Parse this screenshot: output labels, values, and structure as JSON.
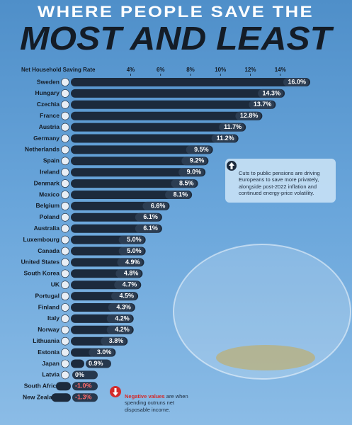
{
  "chart_data": {
    "type": "bar",
    "orientation": "horizontal",
    "title": "WHERE PEOPLE SAVE THE",
    "subtitle": "MOST AND LEAST",
    "x_label": "Net Household Saving Rate",
    "categories": [
      "Sweden",
      "Hungary",
      "Czechia",
      "France",
      "Austria",
      "Germany",
      "Netherlands",
      "Spain",
      "Ireland",
      "Denmark",
      "Mexico",
      "Belgium",
      "Poland",
      "Australia",
      "Luxembourg",
      "Canada",
      "United States",
      "South Korea",
      "UK",
      "Portugal",
      "Finland",
      "Italy",
      "Norway",
      "Lithuania",
      "Estonia",
      "Japan",
      "Latvia",
      "South Africa",
      "New Zealand"
    ],
    "values": [
      16.0,
      14.3,
      13.7,
      12.8,
      11.7,
      11.2,
      9.5,
      9.2,
      9.0,
      8.5,
      8.1,
      6.6,
      6.1,
      6.1,
      5.0,
      5.0,
      4.9,
      4.8,
      4.7,
      4.5,
      4.3,
      4.2,
      4.2,
      3.8,
      3.0,
      0.9,
      0,
      -1.0,
      -1.3
    ],
    "value_labels": [
      "16.0%",
      "14.3%",
      "13.7%",
      "12.8%",
      "11.7%",
      "11.2%",
      "9.5%",
      "9.2%",
      "9.0%",
      "8.5%",
      "8.1%",
      "6.6%",
      "6.1%",
      "6.1%",
      "5.0%",
      "5.0%",
      "4.9%",
      "4.8%",
      "4.7%",
      "4.5%",
      "4.3%",
      "4.2%",
      "4.2%",
      "3.8%",
      "3.0%",
      "0.9%",
      "0%",
      "-1.0%",
      "-1.3%"
    ],
    "color": "#1c2a3c",
    "xlim": [
      0,
      16
    ],
    "xticks": [
      {
        "value": 4,
        "label": "4%"
      },
      {
        "value": 6,
        "label": "6%"
      },
      {
        "value": 8,
        "label": "8%"
      },
      {
        "value": 10,
        "label": "10%"
      },
      {
        "value": 12,
        "label": "12%"
      },
      {
        "value": 14,
        "label": "14%"
      }
    ],
    "annotations": [
      "Cuts to public pensions are driving Europeans to save more privately, alongside post-2022 inflation and continued energy-price volatility.",
      "Negative values",
      "are when spending outruns net disposable income."
    ]
  }
}
